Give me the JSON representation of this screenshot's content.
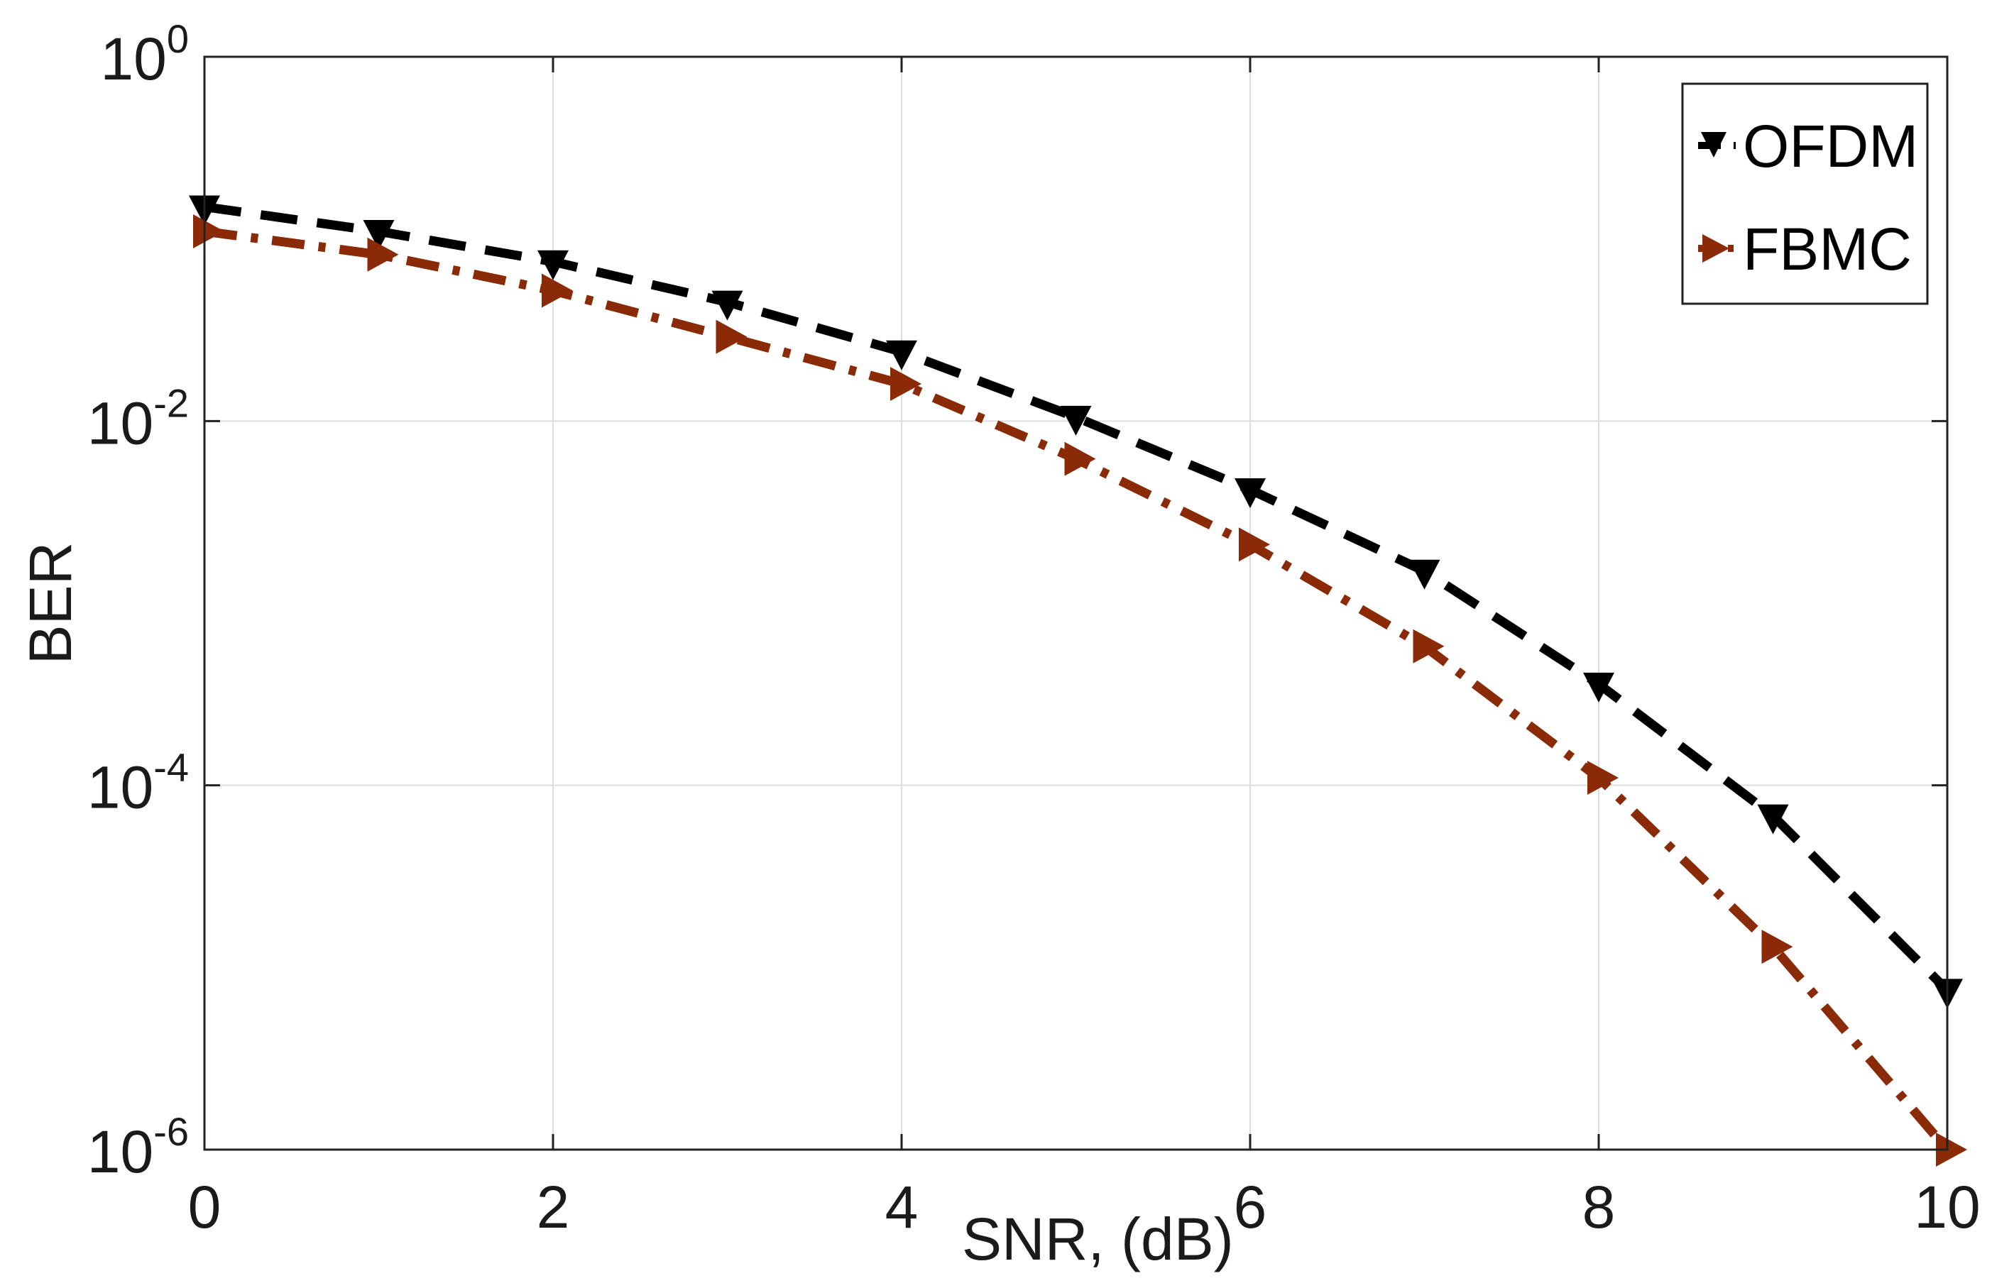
{
  "chart_data": {
    "type": "line",
    "title": "",
    "xlabel": "SNR, (dB)",
    "ylabel": "BER",
    "xlim": [
      0,
      10
    ],
    "ylim": [
      1e-06,
      1
    ],
    "yscale": "log",
    "grid": true,
    "legend_position": "top-right",
    "x_ticks": [
      "0",
      "2",
      "4",
      "6",
      "8",
      "10"
    ],
    "y_ticks": [
      {
        "base": "10",
        "exp": "0"
      },
      {
        "base": "10",
        "exp": "-2"
      },
      {
        "base": "10",
        "exp": "-4"
      },
      {
        "base": "10",
        "exp": "-6"
      }
    ],
    "series": [
      {
        "name": "OFDM",
        "color": "#000000",
        "marker": "triangle-down",
        "line_style": "dashed",
        "x": [
          0,
          1,
          2,
          3,
          4,
          5,
          6,
          7,
          8,
          9,
          10
        ],
        "y": [
          0.15,
          0.11,
          0.075,
          0.045,
          0.024,
          0.0105,
          0.0042,
          0.0015,
          0.00036,
          6.8e-05,
          7.5e-06
        ]
      },
      {
        "name": "FBMC",
        "color": "#8b2a06",
        "marker": "triangle-right",
        "line_style": "dashdot",
        "x": [
          0,
          1,
          2,
          3,
          4,
          5,
          6,
          7,
          8,
          9,
          10
        ],
        "y": [
          0.11,
          0.082,
          0.052,
          0.029,
          0.016,
          0.0062,
          0.0021,
          0.00058,
          0.00011,
          1.3e-05,
          1e-06
        ]
      }
    ]
  }
}
